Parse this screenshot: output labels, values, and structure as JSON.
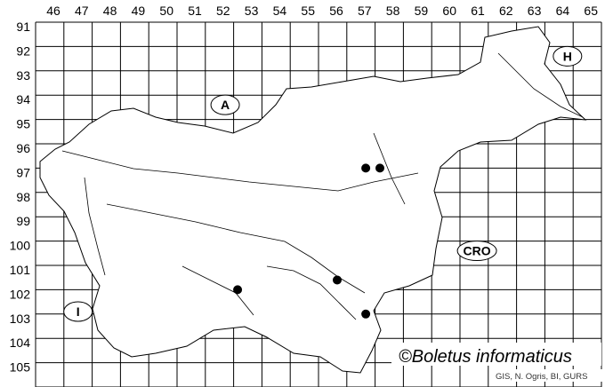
{
  "grid": {
    "columns": [
      "46",
      "47",
      "48",
      "49",
      "50",
      "51",
      "52",
      "53",
      "54",
      "55",
      "56",
      "57",
      "58",
      "59",
      "60",
      "61",
      "62",
      "63",
      "64",
      "65"
    ],
    "rows": [
      "91",
      "92",
      "93",
      "94",
      "95",
      "96",
      "97",
      "98",
      "99",
      "100",
      "101",
      "102",
      "103",
      "104",
      "105"
    ]
  },
  "country_labels": [
    {
      "text": "A",
      "col": 52.7,
      "row": 94.4
    },
    {
      "text": "H",
      "col": 64.8,
      "row": 92.4
    },
    {
      "text": "CRO",
      "col": 61.6,
      "row": 100.4
    },
    {
      "text": "I",
      "col": 47.5,
      "row": 102.9
    }
  ],
  "records": [
    {
      "col": 57.67,
      "row": 97.0
    },
    {
      "col": 58.17,
      "row": 97.0
    },
    {
      "col": 56.66,
      "row": 101.6
    },
    {
      "col": 53.14,
      "row": 102.0
    },
    {
      "col": 57.67,
      "row": 103.0
    }
  ],
  "copyright": "©Boletus informaticus",
  "credit": "GIS, N. Ogris, BI, GURS",
  "colors": {
    "line": "#000000",
    "dot": "#000000",
    "background": "#ffffff"
  }
}
